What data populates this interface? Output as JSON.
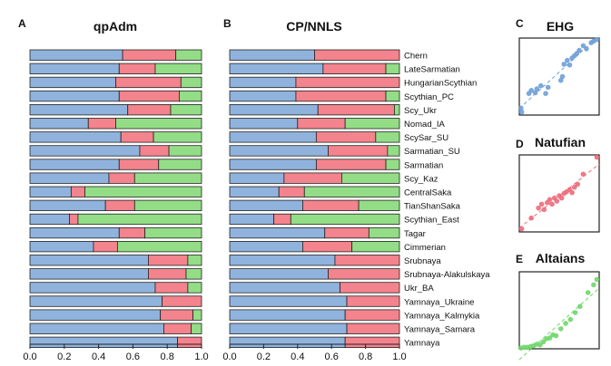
{
  "colors": {
    "blue": "#8fb3dd",
    "red": "#f3838d",
    "green": "#93dd86",
    "edge": "#222222"
  },
  "chart_data": [
    {
      "type": "bar",
      "orientation": "horizontal-stacked",
      "panel": "A",
      "title": "qpAdm",
      "xlim": [
        0,
        1
      ],
      "xticks": [
        "0.0",
        "0.2",
        "0.4",
        "0.6",
        "0.8",
        "1.0"
      ],
      "series_names": [
        "EHG",
        "Natufian",
        "Altaians"
      ],
      "rows": [
        {
          "name": "Chern",
          "values": [
            0.54,
            0.31,
            0.15
          ]
        },
        {
          "name": "LateSarmatian",
          "values": [
            0.52,
            0.21,
            0.27
          ]
        },
        {
          "name": "HungarianScythian",
          "values": [
            0.5,
            0.38,
            0.12
          ]
        },
        {
          "name": "Scythian_PC",
          "values": [
            0.52,
            0.35,
            0.13
          ]
        },
        {
          "name": "Scy_Ukr",
          "values": [
            0.57,
            0.25,
            0.18
          ]
        },
        {
          "name": "Nomad_IA",
          "values": [
            0.34,
            0.16,
            0.5
          ]
        },
        {
          "name": "ScySar_SU",
          "values": [
            0.53,
            0.19,
            0.28
          ]
        },
        {
          "name": "Sarmatian_SU",
          "values": [
            0.64,
            0.17,
            0.19
          ]
        },
        {
          "name": "Sarmatian",
          "values": [
            0.52,
            0.23,
            0.25
          ]
        },
        {
          "name": "Scy_Kaz",
          "values": [
            0.46,
            0.15,
            0.39
          ]
        },
        {
          "name": "CentralSaka",
          "values": [
            0.24,
            0.08,
            0.68
          ]
        },
        {
          "name": "TianShanSaka",
          "values": [
            0.44,
            0.17,
            0.39
          ]
        },
        {
          "name": "Scythian_East",
          "values": [
            0.23,
            0.05,
            0.72
          ]
        },
        {
          "name": "Tagar",
          "values": [
            0.52,
            0.15,
            0.33
          ]
        },
        {
          "name": "Cimmerian",
          "values": [
            0.37,
            0.14,
            0.49
          ]
        },
        {
          "name": "Srubnaya",
          "values": [
            0.69,
            0.23,
            0.08
          ]
        },
        {
          "name": "Srubnaya-Alakulskaya",
          "values": [
            0.69,
            0.22,
            0.09
          ]
        },
        {
          "name": "Ukr_BA",
          "values": [
            0.73,
            0.19,
            0.08
          ]
        },
        {
          "name": "Yamnaya_Ukraine",
          "values": [
            0.77,
            0.23,
            0.0
          ]
        },
        {
          "name": "Yamnaya_Kalmykia",
          "values": [
            0.76,
            0.19,
            0.05
          ]
        },
        {
          "name": "Yamnaya_Samara",
          "values": [
            0.78,
            0.16,
            0.06
          ]
        },
        {
          "name": "Yamnaya",
          "values": [
            0.86,
            0.14,
            0.0
          ]
        }
      ]
    },
    {
      "type": "bar",
      "orientation": "horizontal-stacked",
      "panel": "B",
      "title": "CP/NNLS",
      "xlim": [
        0,
        1
      ],
      "xticks": [
        "0.0",
        "0.2",
        "0.4",
        "0.6",
        "0.8",
        "1.0"
      ],
      "series_names": [
        "EHG",
        "Natufian",
        "Altaians"
      ],
      "rows": [
        {
          "name": "Chern",
          "values": [
            0.5,
            0.5,
            0.0
          ]
        },
        {
          "name": "LateSarmatian",
          "values": [
            0.55,
            0.37,
            0.08
          ]
        },
        {
          "name": "HungarianScythian",
          "values": [
            0.39,
            0.61,
            0.0
          ]
        },
        {
          "name": "Scythian_PC",
          "values": [
            0.39,
            0.53,
            0.08
          ]
        },
        {
          "name": "Scy_Ukr",
          "values": [
            0.52,
            0.45,
            0.03
          ]
        },
        {
          "name": "Nomad_IA",
          "values": [
            0.4,
            0.28,
            0.32
          ]
        },
        {
          "name": "ScySar_SU",
          "values": [
            0.51,
            0.35,
            0.14
          ]
        },
        {
          "name": "Sarmatian_SU",
          "values": [
            0.58,
            0.35,
            0.07
          ]
        },
        {
          "name": "Sarmatian",
          "values": [
            0.51,
            0.41,
            0.08
          ]
        },
        {
          "name": "Scy_Kaz",
          "values": [
            0.32,
            0.34,
            0.34
          ]
        },
        {
          "name": "CentralSaka",
          "values": [
            0.29,
            0.15,
            0.56
          ]
        },
        {
          "name": "TianShanSaka",
          "values": [
            0.43,
            0.33,
            0.24
          ]
        },
        {
          "name": "Scythian_East",
          "values": [
            0.26,
            0.1,
            0.64
          ]
        },
        {
          "name": "Tagar",
          "values": [
            0.56,
            0.26,
            0.18
          ]
        },
        {
          "name": "Cimmerian",
          "values": [
            0.43,
            0.29,
            0.28
          ]
        },
        {
          "name": "Srubnaya",
          "values": [
            0.62,
            0.38,
            0.0
          ]
        },
        {
          "name": "Srubnaya-Alakulskaya",
          "values": [
            0.58,
            0.42,
            0.0
          ]
        },
        {
          "name": "Ukr_BA",
          "values": [
            0.65,
            0.35,
            0.0
          ]
        },
        {
          "name": "Yamnaya_Ukraine",
          "values": [
            0.69,
            0.31,
            0.0
          ]
        },
        {
          "name": "Yamnaya_Kalmykia",
          "values": [
            0.68,
            0.32,
            0.0
          ]
        },
        {
          "name": "Yamnaya_Samara",
          "values": [
            0.69,
            0.31,
            0.0
          ]
        },
        {
          "name": "Yamnaya",
          "values": [
            0.68,
            0.32,
            0.0
          ]
        }
      ]
    },
    {
      "type": "scatter",
      "panel": "C",
      "title": "EHG",
      "color": "#6f9fd6",
      "trendline": "dashed",
      "points": [
        [
          0.03,
          0.04
        ],
        [
          0.02,
          0.09
        ],
        [
          0.12,
          0.28
        ],
        [
          0.15,
          0.32
        ],
        [
          0.2,
          0.29
        ],
        [
          0.22,
          0.34
        ],
        [
          0.27,
          0.38
        ],
        [
          0.33,
          0.28
        ],
        [
          0.36,
          0.36
        ],
        [
          0.52,
          0.45
        ],
        [
          0.54,
          0.5
        ],
        [
          0.56,
          0.66
        ],
        [
          0.6,
          0.71
        ],
        [
          0.63,
          0.65
        ],
        [
          0.66,
          0.74
        ],
        [
          0.69,
          0.77
        ],
        [
          0.72,
          0.8
        ],
        [
          0.75,
          0.84
        ],
        [
          0.8,
          0.9
        ],
        [
          0.84,
          0.86
        ],
        [
          0.9,
          0.94
        ],
        [
          0.93,
          0.96
        ],
        [
          0.97,
          0.98
        ]
      ]
    },
    {
      "type": "scatter",
      "panel": "D",
      "title": "Natufian",
      "color": "#ec6b7a",
      "trendline": "dashed",
      "points": [
        [
          0.03,
          0.04
        ],
        [
          0.15,
          0.18
        ],
        [
          0.24,
          0.31
        ],
        [
          0.28,
          0.36
        ],
        [
          0.31,
          0.29
        ],
        [
          0.35,
          0.38
        ],
        [
          0.38,
          0.42
        ],
        [
          0.41,
          0.36
        ],
        [
          0.44,
          0.44
        ],
        [
          0.47,
          0.4
        ],
        [
          0.5,
          0.47
        ],
        [
          0.53,
          0.44
        ],
        [
          0.56,
          0.5
        ],
        [
          0.59,
          0.52
        ],
        [
          0.63,
          0.55
        ],
        [
          0.66,
          0.51
        ],
        [
          0.69,
          0.58
        ],
        [
          0.73,
          0.62
        ],
        [
          0.8,
          0.75
        ],
        [
          0.97,
          0.97
        ]
      ]
    },
    {
      "type": "scatter",
      "panel": "E",
      "title": "Altaians",
      "color": "#6fd66a",
      "trendline": "dashed",
      "points": [
        [
          0.02,
          0.01
        ],
        [
          0.06,
          0.02
        ],
        [
          0.1,
          0.02
        ],
        [
          0.14,
          0.03
        ],
        [
          0.18,
          0.04
        ],
        [
          0.22,
          0.06
        ],
        [
          0.26,
          0.05
        ],
        [
          0.3,
          0.09
        ],
        [
          0.34,
          0.13
        ],
        [
          0.38,
          0.14
        ],
        [
          0.42,
          0.18
        ],
        [
          0.46,
          0.17
        ],
        [
          0.52,
          0.26
        ],
        [
          0.58,
          0.33
        ],
        [
          0.64,
          0.38
        ],
        [
          0.7,
          0.47
        ],
        [
          0.76,
          0.55
        ],
        [
          0.86,
          0.73
        ],
        [
          0.93,
          0.83
        ],
        [
          0.97,
          0.9
        ]
      ]
    }
  ]
}
